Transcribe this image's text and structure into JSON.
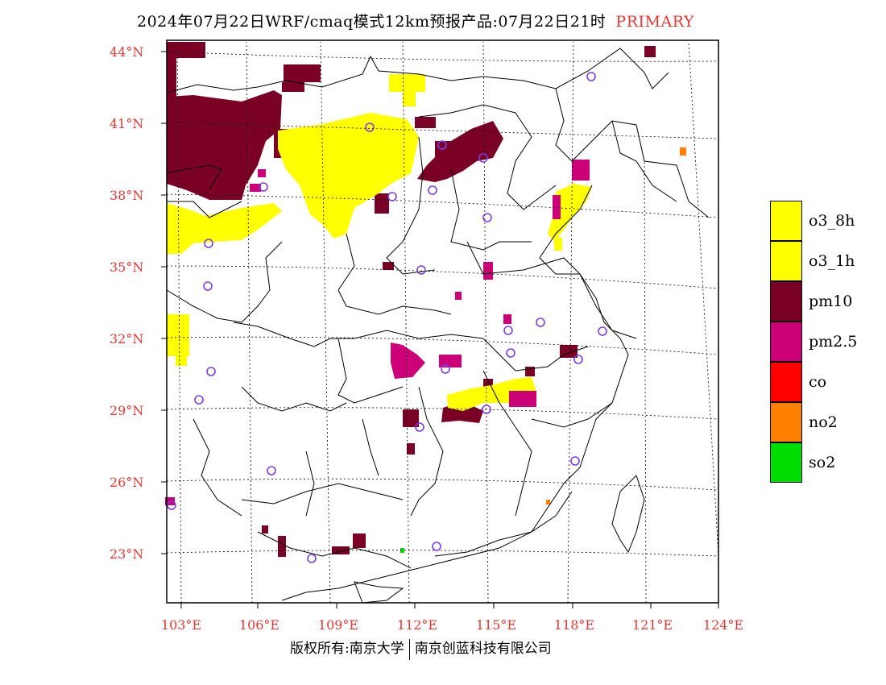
{
  "header": {
    "title": "2024年07月22日WRF/cmaq模式12km预报产品:07月22日21时",
    "tag": "PRIMARY"
  },
  "axes": {
    "latitudes": [
      "44°N",
      "41°N",
      "38°N",
      "35°N",
      "32°N",
      "29°N",
      "26°N",
      "23°N"
    ],
    "longitudes": [
      "103°E",
      "106°E",
      "109°E",
      "112°E",
      "115°E",
      "118°E",
      "121°E",
      "124°E"
    ]
  },
  "legend": {
    "items": [
      {
        "label": "o3_8h",
        "color": "#ffff00"
      },
      {
        "label": "o3_1h",
        "color": "#ffff00"
      },
      {
        "label": "pm10",
        "color": "#7a0026"
      },
      {
        "label": "pm2.5",
        "color": "#cc0077"
      },
      {
        "label": "co",
        "color": "#ff0000"
      },
      {
        "label": "no2",
        "color": "#ff7f00"
      },
      {
        "label": "so2",
        "color": "#00dd00"
      }
    ]
  },
  "footer": {
    "left": "版权所有:南京大学",
    "right": "南京创蓝科技有限公司"
  }
}
